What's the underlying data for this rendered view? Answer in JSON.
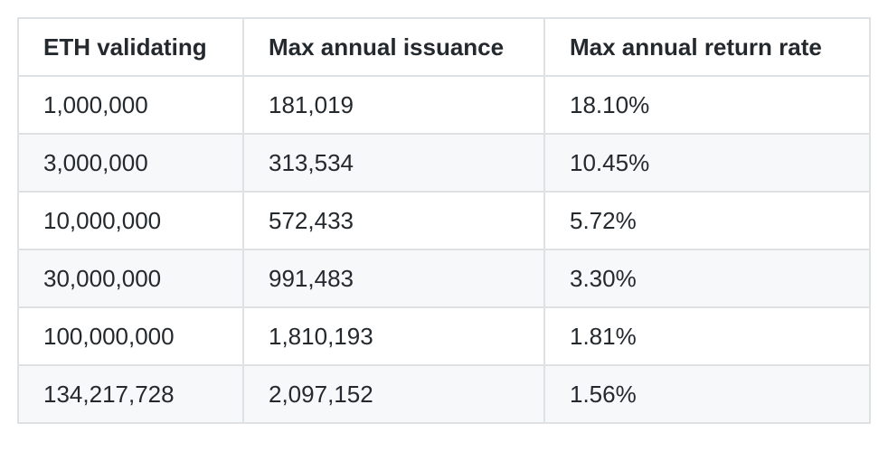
{
  "table": {
    "headers": [
      "ETH validating",
      "Max annual issuance",
      "Max annual return rate"
    ],
    "rows": [
      [
        "1,000,000",
        "181,019",
        "18.10%"
      ],
      [
        "3,000,000",
        "313,534",
        "10.45%"
      ],
      [
        "10,000,000",
        "572,433",
        "5.72%"
      ],
      [
        "30,000,000",
        "991,483",
        "3.30%"
      ],
      [
        "100,000,000",
        "1,810,193",
        "1.81%"
      ],
      [
        "134,217,728",
        "2,097,152",
        "1.56%"
      ]
    ]
  },
  "colors": {
    "text": "#24292e",
    "border": "#dfe2e5",
    "stripe": "#f6f8fa",
    "background": "#ffffff"
  }
}
